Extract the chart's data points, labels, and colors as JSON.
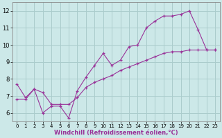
{
  "title": "",
  "xlabel": "Windchill (Refroidissement éolien,°C)",
  "ylabel": "",
  "background_color": "#cce8e8",
  "grid_color": "#aacccc",
  "line_color": "#993399",
  "xlim": [
    -0.5,
    23.5
  ],
  "ylim": [
    5.5,
    12.5
  ],
  "yticks": [
    6,
    7,
    8,
    9,
    10,
    11,
    12
  ],
  "xticks": [
    0,
    1,
    2,
    3,
    4,
    5,
    6,
    7,
    8,
    9,
    10,
    11,
    12,
    13,
    14,
    15,
    16,
    17,
    18,
    19,
    20,
    21,
    22,
    23
  ],
  "line1_x": [
    0,
    1,
    2,
    3,
    4,
    5,
    6,
    7,
    8,
    9,
    10,
    11,
    12,
    13,
    14,
    15,
    16,
    17,
    18,
    19,
    20,
    21,
    22,
    23
  ],
  "line1_y": [
    7.7,
    6.9,
    7.4,
    6.0,
    6.4,
    6.4,
    5.7,
    7.3,
    8.1,
    8.8,
    9.5,
    8.8,
    9.1,
    9.9,
    10.0,
    11.0,
    11.4,
    11.7,
    11.7,
    11.8,
    12.0,
    10.9,
    9.7,
    9.7
  ],
  "line2_x": [
    0,
    1,
    2,
    3,
    4,
    5,
    6,
    7,
    8,
    9,
    10,
    11,
    12,
    13,
    14,
    15,
    16,
    17,
    18,
    19,
    20,
    21,
    22,
    23
  ],
  "line2_y": [
    6.8,
    6.8,
    7.4,
    7.2,
    6.5,
    6.5,
    6.5,
    6.9,
    7.5,
    7.8,
    8.0,
    8.2,
    8.5,
    8.7,
    8.9,
    9.1,
    9.3,
    9.5,
    9.6,
    9.6,
    9.7,
    9.7,
    9.7,
    9.7
  ]
}
